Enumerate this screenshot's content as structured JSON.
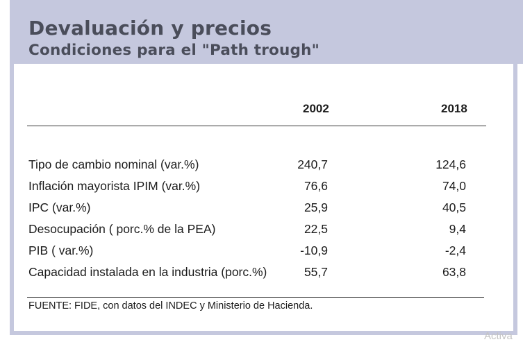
{
  "title": "Devaluación y precios",
  "subtitle": "Condiciones para el \"Path trough\"",
  "table": {
    "columns": [
      "2002",
      "2018"
    ],
    "rows": [
      {
        "label": "Tipo de cambio nominal (var.%)",
        "v2002": "240,7",
        "v2018": "124,6"
      },
      {
        "label": "Inﬂación mayorista IPIM (var.%)",
        "v2002": "76,6",
        "v2018": "74,0"
      },
      {
        "label": "IPC (var.%)",
        "v2002": "25,9",
        "v2018": "40,5"
      },
      {
        "label": "Desocupación ( porc.% de la PEA)",
        "v2002": "22,5",
        "v2018": "9,4"
      },
      {
        "label": "PIB ( var.%)",
        "v2002": "-10,9",
        "v2018": "-2,4"
      },
      {
        "label": "Capacidad instalada en la industria (porc.%)",
        "v2002": "55,7",
        "v2018": "63,8"
      }
    ]
  },
  "source": "FUENTE: FIDE, con datos del INDEC y Ministerio de Hacienda.",
  "watermark": "Activa",
  "colors": {
    "frame": "#c5c8de",
    "title": "#4a4d5a",
    "text": "#1c1c1c"
  }
}
